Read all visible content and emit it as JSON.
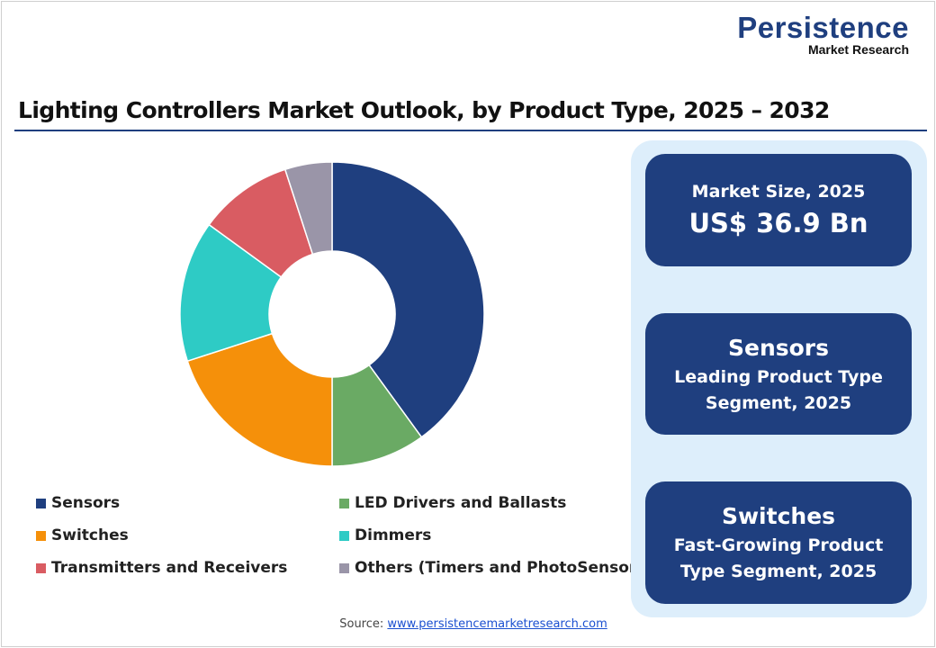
{
  "brand": {
    "line1": "Persistence",
    "line2": "Market Research"
  },
  "title": "Lighting Controllers Market Outlook, by Product Type, 2025 – 2032",
  "cards": [
    {
      "label": "Market Size, 2025",
      "value": "US$ 36.9 Bn"
    },
    {
      "value": "Sensors",
      "label1": "Leading Product Type",
      "label2": "Segment, 2025"
    },
    {
      "value": "Switches",
      "label1": "Fast-Growing Product",
      "label2": "Type Segment, 2025"
    }
  ],
  "source": {
    "prefix": "Source: ",
    "link": "www.persistencemarketresearch.com"
  },
  "chart_data": {
    "type": "pie",
    "donut": true,
    "categories": [
      "Sensors",
      "LED Drivers and Ballasts",
      "Switches",
      "Dimmers",
      "Transmitters and Receivers",
      "Others (Timers and PhotoSensors)"
    ],
    "values": [
      40,
      10,
      20,
      15,
      10,
      5
    ],
    "colors": [
      "#1f3f7f",
      "#6aaa64",
      "#f5900a",
      "#2ecbc5",
      "#d95c62",
      "#9a95a8"
    ],
    "legend_placement": "bottom"
  }
}
